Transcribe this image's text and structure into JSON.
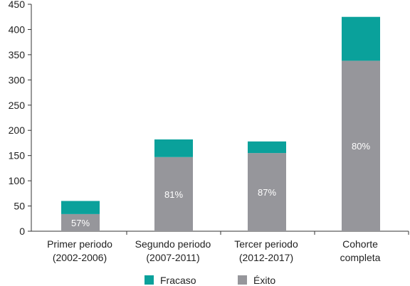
{
  "colors": {
    "fracaso": "#0aa19b",
    "exito": "#96969b",
    "axis": "#333333",
    "label_on_bar": "#ffffff"
  },
  "chart_data": {
    "type": "bar",
    "stacked": true,
    "categories": [
      [
        "Primer periodo",
        "(2002-2006)"
      ],
      [
        "Segundo periodo",
        "(2007-2011)"
      ],
      [
        "Tercer periodo",
        "(2012-2017)"
      ],
      [
        "Cohorte",
        "completa"
      ]
    ],
    "series": [
      {
        "name": "Éxito",
        "color": "#96969b",
        "values": [
          34,
          147,
          155,
          338
        ]
      },
      {
        "name": "Fracaso",
        "color": "#0aa19b",
        "values": [
          26,
          35,
          23,
          87
        ]
      }
    ],
    "bar_labels": [
      "57%",
      "81%",
      "87%",
      "80%"
    ],
    "ylim": [
      0,
      450
    ],
    "yticks": [
      0,
      50,
      100,
      150,
      200,
      250,
      300,
      350,
      400,
      450
    ],
    "grid": false,
    "legend": {
      "position": "bottom",
      "entries": [
        {
          "label": "Fracaso",
          "color": "#0aa19b"
        },
        {
          "label": "Éxito",
          "color": "#96969b"
        }
      ]
    }
  }
}
